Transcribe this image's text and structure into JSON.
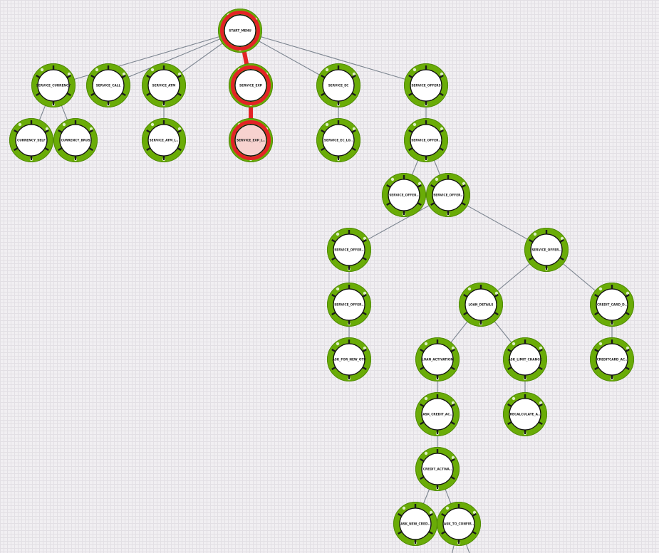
{
  "flow": {
    "colors": {
      "ring": "#6aac07",
      "ring_dark": "#4f8a05",
      "selected": "#e32226",
      "selected_fill": "#f7d2cf",
      "edge": "#7c8590",
      "tick": "#1a1a1a"
    },
    "nodes": [
      {
        "id": "start",
        "label": "START_MENU",
        "selected": true
      },
      {
        "id": "currency",
        "label": "SERVICE_CURRENCY"
      },
      {
        "id": "call",
        "label": "SERVICE_CALL"
      },
      {
        "id": "atm",
        "label": "SERVICE_ATM"
      },
      {
        "id": "exp",
        "label": "SERVICE_EXP",
        "selected": true
      },
      {
        "id": "ec",
        "label": "SERVICE_EC"
      },
      {
        "id": "offers",
        "label": "SERVICE_OFFERS"
      },
      {
        "id": "cself",
        "label": "CURRENCY_SELF"
      },
      {
        "id": "cbrus",
        "label": "CURRENCY_BRUS"
      },
      {
        "id": "atml",
        "label": "SERVICE_ATM_L.."
      },
      {
        "id": "expl",
        "label": "SERVICE_EXP_L..",
        "selected": true,
        "filled": true
      },
      {
        "id": "eclo",
        "label": "SERVICE_EC_LO.."
      },
      {
        "id": "off2",
        "label": "SERVICE_OFFER.."
      },
      {
        "id": "off3a",
        "label": "SERVICE_OFFER.."
      },
      {
        "id": "off3b",
        "label": "SERVICE_OFFER.."
      },
      {
        "id": "off4a",
        "label": "SERVICE_OFFER.."
      },
      {
        "id": "off4b",
        "label": "SERVICE_OFFER.."
      },
      {
        "id": "off5a",
        "label": "SERVICE_OFFER.."
      },
      {
        "id": "loan",
        "label": "LOAN_DETAILS"
      },
      {
        "id": "ccd",
        "label": "CREDIT_CARD_D.."
      },
      {
        "id": "otp",
        "label": "ASK_FOR_NEW_OTP"
      },
      {
        "id": "loanact",
        "label": "LOAN_ACTIVATION"
      },
      {
        "id": "limit",
        "label": "ASK_LIMIT_CHANGE"
      },
      {
        "id": "ccac",
        "label": "CREDITCARD_AC.."
      },
      {
        "id": "askcred",
        "label": "ASK_CREDIT_AC.."
      },
      {
        "id": "recalc",
        "label": "RECALCULATE_A.."
      },
      {
        "id": "credact",
        "label": "CREDIT_ACTIVA.."
      },
      {
        "id": "askcnew",
        "label": "ASK_NEW_CRED.."
      },
      {
        "id": "asktoc",
        "label": "ASK_TO_CONFIR.."
      }
    ],
    "edges": [
      [
        "start",
        "currency"
      ],
      [
        "start",
        "call"
      ],
      [
        "start",
        "atm"
      ],
      [
        "start",
        "exp"
      ],
      [
        "start",
        "ec"
      ],
      [
        "start",
        "offers"
      ],
      [
        "currency",
        "cself"
      ],
      [
        "currency",
        "cbrus"
      ],
      [
        "atm",
        "atml"
      ],
      [
        "exp",
        "expl"
      ],
      [
        "ec",
        "eclo"
      ],
      [
        "offers",
        "off2"
      ],
      [
        "off2",
        "off3a"
      ],
      [
        "off2",
        "off3b"
      ],
      [
        "off3b",
        "off4a"
      ],
      [
        "off3b",
        "off4b"
      ],
      [
        "off4a",
        "off5a"
      ],
      [
        "off5a",
        "otp"
      ],
      [
        "off4b",
        "loan"
      ],
      [
        "off4b",
        "ccd"
      ],
      [
        "loan",
        "loanact"
      ],
      [
        "loan",
        "limit"
      ],
      [
        "ccd",
        "ccac"
      ],
      [
        "loanact",
        "askcred"
      ],
      [
        "askcred",
        "credact"
      ],
      [
        "credact",
        "askcnew"
      ],
      [
        "credact",
        "asktoc"
      ],
      [
        "limit",
        "recalc"
      ]
    ],
    "selected_edges": [
      [
        "start",
        "exp"
      ],
      [
        "exp",
        "expl"
      ]
    ]
  }
}
